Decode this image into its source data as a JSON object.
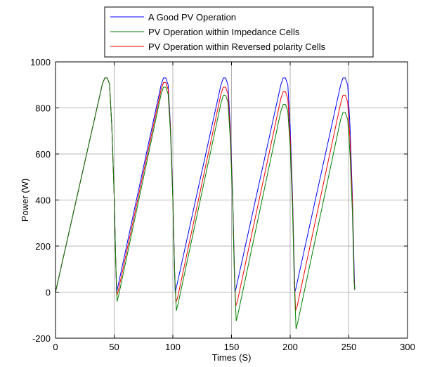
{
  "chart_data": {
    "type": "line",
    "title": "",
    "xlabel": "Times (S)",
    "ylabel": "Power (W)",
    "xlim": [
      0,
      300
    ],
    "ylim": [
      -200,
      1000
    ],
    "xticks": [
      0,
      50,
      100,
      150,
      200,
      250,
      300
    ],
    "yticks": [
      -200,
      0,
      200,
      400,
      600,
      800,
      1000
    ],
    "grid": true,
    "legend_position": "top-right",
    "series": [
      {
        "name": "A Good PV Operation",
        "color": "#0000ff",
        "points": [
          [
            0,
            0
          ],
          [
            40,
            905
          ],
          [
            42,
            930
          ],
          [
            44,
            930
          ],
          [
            46,
            905
          ],
          [
            48,
            720
          ],
          [
            50,
            420
          ],
          [
            51.5,
            100
          ],
          [
            52,
            0
          ],
          [
            53,
            20
          ],
          [
            90,
            900
          ],
          [
            92,
            930
          ],
          [
            94,
            930
          ],
          [
            96,
            900
          ],
          [
            98,
            720
          ],
          [
            100,
            420
          ],
          [
            101.5,
            100
          ],
          [
            102,
            0
          ],
          [
            103,
            20
          ],
          [
            141,
            900
          ],
          [
            143,
            930
          ],
          [
            145,
            930
          ],
          [
            147,
            900
          ],
          [
            149,
            720
          ],
          [
            151,
            420
          ],
          [
            152.5,
            100
          ],
          [
            153,
            0
          ],
          [
            154,
            20
          ],
          [
            192,
            900
          ],
          [
            194,
            930
          ],
          [
            196,
            930
          ],
          [
            198,
            900
          ],
          [
            200,
            720
          ],
          [
            202,
            420
          ],
          [
            203.5,
            100
          ],
          [
            204,
            0
          ],
          [
            205,
            20
          ],
          [
            243,
            900
          ],
          [
            245,
            930
          ],
          [
            247,
            930
          ],
          [
            249,
            900
          ],
          [
            251,
            720
          ],
          [
            253,
            420
          ],
          [
            254.5,
            100
          ],
          [
            255,
            10
          ]
        ]
      },
      {
        "name": "PV Operation within Impedance Cells",
        "color": "#008000",
        "points": [
          [
            0,
            0
          ],
          [
            40,
            905
          ],
          [
            42,
            930
          ],
          [
            44,
            930
          ],
          [
            46,
            905
          ],
          [
            48,
            720
          ],
          [
            50,
            420
          ],
          [
            51.5,
            100
          ],
          [
            52.5,
            -40
          ],
          [
            54,
            -10
          ],
          [
            90,
            860
          ],
          [
            92,
            890
          ],
          [
            94,
            890
          ],
          [
            96,
            860
          ],
          [
            98,
            690
          ],
          [
            100,
            400
          ],
          [
            101.5,
            80
          ],
          [
            103,
            -80
          ],
          [
            104.5,
            -50
          ],
          [
            141,
            820
          ],
          [
            143,
            855
          ],
          [
            145,
            855
          ],
          [
            147,
            825
          ],
          [
            149,
            660
          ],
          [
            151,
            390
          ],
          [
            152.5,
            60
          ],
          [
            154,
            -125
          ],
          [
            155.5,
            -95
          ],
          [
            192,
            785
          ],
          [
            194,
            815
          ],
          [
            196,
            815
          ],
          [
            198,
            785
          ],
          [
            200,
            630
          ],
          [
            202,
            370
          ],
          [
            203.5,
            40
          ],
          [
            205,
            -160
          ],
          [
            206.5,
            -130
          ],
          [
            243,
            750
          ],
          [
            245,
            780
          ],
          [
            247,
            780
          ],
          [
            249,
            750
          ],
          [
            251,
            600
          ],
          [
            253,
            350
          ],
          [
            254.5,
            40
          ],
          [
            255,
            10
          ]
        ]
      },
      {
        "name": "PV Operation within Reversed polarity Cells",
        "color": "#ff0000",
        "points": [
          [
            0,
            0
          ],
          [
            40,
            905
          ],
          [
            42,
            930
          ],
          [
            44,
            930
          ],
          [
            46,
            905
          ],
          [
            48,
            720
          ],
          [
            50,
            420
          ],
          [
            51.5,
            100
          ],
          [
            52.3,
            -15
          ],
          [
            53.5,
            5
          ],
          [
            90,
            880
          ],
          [
            92,
            910
          ],
          [
            94,
            910
          ],
          [
            96,
            880
          ],
          [
            98,
            705
          ],
          [
            100,
            410
          ],
          [
            101.5,
            90
          ],
          [
            102.6,
            -45
          ],
          [
            104,
            -25
          ],
          [
            141,
            860
          ],
          [
            143,
            890
          ],
          [
            145,
            890
          ],
          [
            147,
            860
          ],
          [
            149,
            690
          ],
          [
            151,
            400
          ],
          [
            152.5,
            80
          ],
          [
            153.6,
            -60
          ],
          [
            155,
            -40
          ],
          [
            192,
            840
          ],
          [
            194,
            870
          ],
          [
            196,
            870
          ],
          [
            198,
            840
          ],
          [
            200,
            670
          ],
          [
            202,
            395
          ],
          [
            203.5,
            70
          ],
          [
            204.6,
            -80
          ],
          [
            206,
            -60
          ],
          [
            243,
            820
          ],
          [
            245,
            855
          ],
          [
            247,
            855
          ],
          [
            249,
            825
          ],
          [
            251,
            660
          ],
          [
            253,
            390
          ],
          [
            254.5,
            60
          ],
          [
            255,
            10
          ]
        ]
      }
    ]
  }
}
